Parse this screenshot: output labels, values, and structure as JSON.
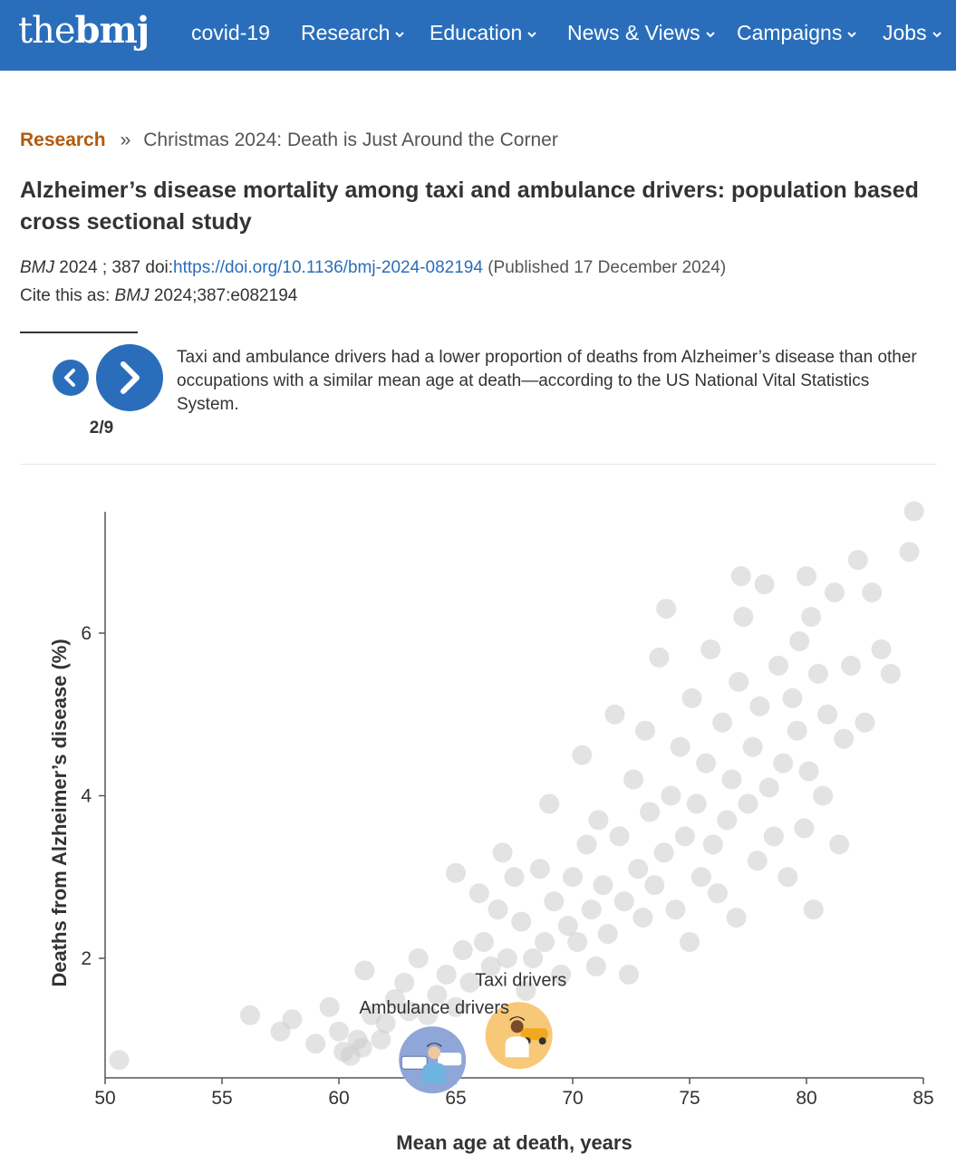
{
  "logo": {
    "light": "the",
    "bold": "bmj"
  },
  "nav": [
    {
      "label": "covid-19",
      "dropdown": false
    },
    {
      "label": "Research",
      "dropdown": true
    },
    {
      "label": "Education",
      "dropdown": true
    },
    {
      "label": "News & Views",
      "dropdown": true
    },
    {
      "label": "Campaigns",
      "dropdown": true
    },
    {
      "label": "Jobs",
      "dropdown": true
    }
  ],
  "breadcrumb": {
    "section": "Research",
    "separator": "»",
    "current": "Christmas 2024: Death is Just Around the Corner"
  },
  "article": {
    "title": "Alzheimer’s disease mortality among taxi and ambulance drivers: population based cross sectional study",
    "journal": "BMJ",
    "citation_year_vol": "2024 ; 387",
    "doi_label": "doi:",
    "doi_url": "https://doi.org/10.1136/bmj-2024-082194",
    "published": "(Published 17 December 2024)",
    "cite_label": "Cite this as:",
    "cite_journal": "BMJ",
    "cite_ref": "2024;387:e082194"
  },
  "slides": {
    "counter": "2/9",
    "caption": "Taxi and ambulance drivers had a lower proportion of deaths from Alzheimer’s disease than other occupations with a similar mean age at death—according to the US National Vital Statistics System."
  },
  "colors": {
    "brand_blue": "#2a6ebb",
    "research_orange": "#b35a0e",
    "point_grey": "#cccccc",
    "ambulance_bg": "#8fa6d8",
    "taxi_bg": "#f7c878"
  },
  "chart_data": {
    "type": "scatter",
    "xlabel": "Mean age at death, years",
    "ylabel": "Deaths from Alzheimer’s disease (%)",
    "xlim": [
      50,
      85
    ],
    "ylim": [
      0.6,
      7.6
    ],
    "xticks": [
      50,
      55,
      60,
      65,
      70,
      75,
      80,
      85
    ],
    "yticks": [
      2,
      4,
      6
    ],
    "grid": false,
    "highlighted": [
      {
        "label": "Taxi drivers",
        "x": 67.7,
        "y": 1.05,
        "icon": "taxi-driver-icon"
      },
      {
        "label": "Ambulance drivers",
        "x": 64.0,
        "y": 0.75,
        "icon": "ambulance-driver-icon"
      }
    ],
    "points": [
      [
        50.6,
        0.75
      ],
      [
        56.2,
        1.3
      ],
      [
        57.5,
        1.1
      ],
      [
        58.0,
        1.25
      ],
      [
        59.0,
        0.95
      ],
      [
        59.6,
        1.4
      ],
      [
        60.0,
        1.1
      ],
      [
        60.2,
        0.85
      ],
      [
        60.5,
        0.8
      ],
      [
        60.8,
        1.0
      ],
      [
        61.0,
        0.9
      ],
      [
        61.1,
        1.85
      ],
      [
        61.4,
        1.3
      ],
      [
        61.8,
        1.0
      ],
      [
        62.0,
        1.2
      ],
      [
        62.4,
        1.5
      ],
      [
        62.8,
        1.7
      ],
      [
        63.0,
        1.35
      ],
      [
        63.4,
        2.0
      ],
      [
        63.8,
        1.3
      ],
      [
        64.2,
        1.55
      ],
      [
        64.6,
        1.8
      ],
      [
        65.0,
        1.4
      ],
      [
        65.0,
        3.05
      ],
      [
        65.3,
        2.1
      ],
      [
        65.6,
        1.7
      ],
      [
        66.0,
        2.8
      ],
      [
        66.2,
        2.2
      ],
      [
        66.5,
        1.9
      ],
      [
        66.8,
        2.6
      ],
      [
        67.0,
        3.3
      ],
      [
        67.2,
        2.0
      ],
      [
        67.5,
        3.0
      ],
      [
        67.8,
        2.45
      ],
      [
        68.0,
        1.6
      ],
      [
        68.3,
        2.0
      ],
      [
        68.6,
        3.1
      ],
      [
        68.8,
        2.2
      ],
      [
        69.0,
        3.9
      ],
      [
        69.2,
        2.7
      ],
      [
        69.5,
        1.8
      ],
      [
        69.8,
        2.4
      ],
      [
        70.0,
        3.0
      ],
      [
        70.2,
        2.2
      ],
      [
        70.4,
        4.5
      ],
      [
        70.6,
        3.4
      ],
      [
        70.8,
        2.6
      ],
      [
        71.0,
        1.9
      ],
      [
        71.1,
        3.7
      ],
      [
        71.3,
        2.9
      ],
      [
        71.5,
        2.3
      ],
      [
        71.8,
        5.0
      ],
      [
        72.0,
        3.5
      ],
      [
        72.2,
        2.7
      ],
      [
        72.4,
        1.8
      ],
      [
        72.6,
        4.2
      ],
      [
        72.8,
        3.1
      ],
      [
        73.0,
        2.5
      ],
      [
        73.1,
        4.8
      ],
      [
        73.3,
        3.8
      ],
      [
        73.5,
        2.9
      ],
      [
        73.7,
        5.7
      ],
      [
        73.9,
        3.3
      ],
      [
        74.0,
        6.3
      ],
      [
        74.2,
        4.0
      ],
      [
        74.4,
        2.6
      ],
      [
        74.6,
        4.6
      ],
      [
        74.8,
        3.5
      ],
      [
        75.0,
        2.2
      ],
      [
        75.1,
        5.2
      ],
      [
        75.3,
        3.9
      ],
      [
        75.5,
        3.0
      ],
      [
        75.7,
        4.4
      ],
      [
        75.9,
        5.8
      ],
      [
        76.0,
        3.4
      ],
      [
        76.2,
        2.8
      ],
      [
        76.4,
        4.9
      ],
      [
        76.6,
        3.7
      ],
      [
        76.8,
        4.2
      ],
      [
        77.0,
        2.5
      ],
      [
        77.1,
        5.4
      ],
      [
        77.2,
        6.7
      ],
      [
        77.3,
        6.2
      ],
      [
        77.5,
        3.9
      ],
      [
        77.7,
        4.6
      ],
      [
        77.9,
        3.2
      ],
      [
        78.0,
        5.1
      ],
      [
        78.2,
        6.6
      ],
      [
        78.4,
        4.1
      ],
      [
        78.6,
        3.5
      ],
      [
        78.8,
        5.6
      ],
      [
        79.0,
        4.4
      ],
      [
        79.2,
        3.0
      ],
      [
        79.4,
        5.2
      ],
      [
        79.6,
        4.8
      ],
      [
        79.7,
        5.9
      ],
      [
        79.9,
        3.6
      ],
      [
        80.0,
        6.7
      ],
      [
        80.1,
        4.3
      ],
      [
        80.2,
        6.2
      ],
      [
        80.3,
        2.6
      ],
      [
        80.5,
        5.5
      ],
      [
        80.7,
        4.0
      ],
      [
        80.9,
        5.0
      ],
      [
        81.2,
        6.5
      ],
      [
        81.4,
        3.4
      ],
      [
        81.6,
        4.7
      ],
      [
        81.9,
        5.6
      ],
      [
        82.2,
        6.9
      ],
      [
        82.5,
        4.9
      ],
      [
        82.8,
        6.5
      ],
      [
        83.2,
        5.8
      ],
      [
        83.6,
        5.5
      ],
      [
        84.4,
        7.0
      ],
      [
        84.6,
        7.5
      ]
    ]
  }
}
